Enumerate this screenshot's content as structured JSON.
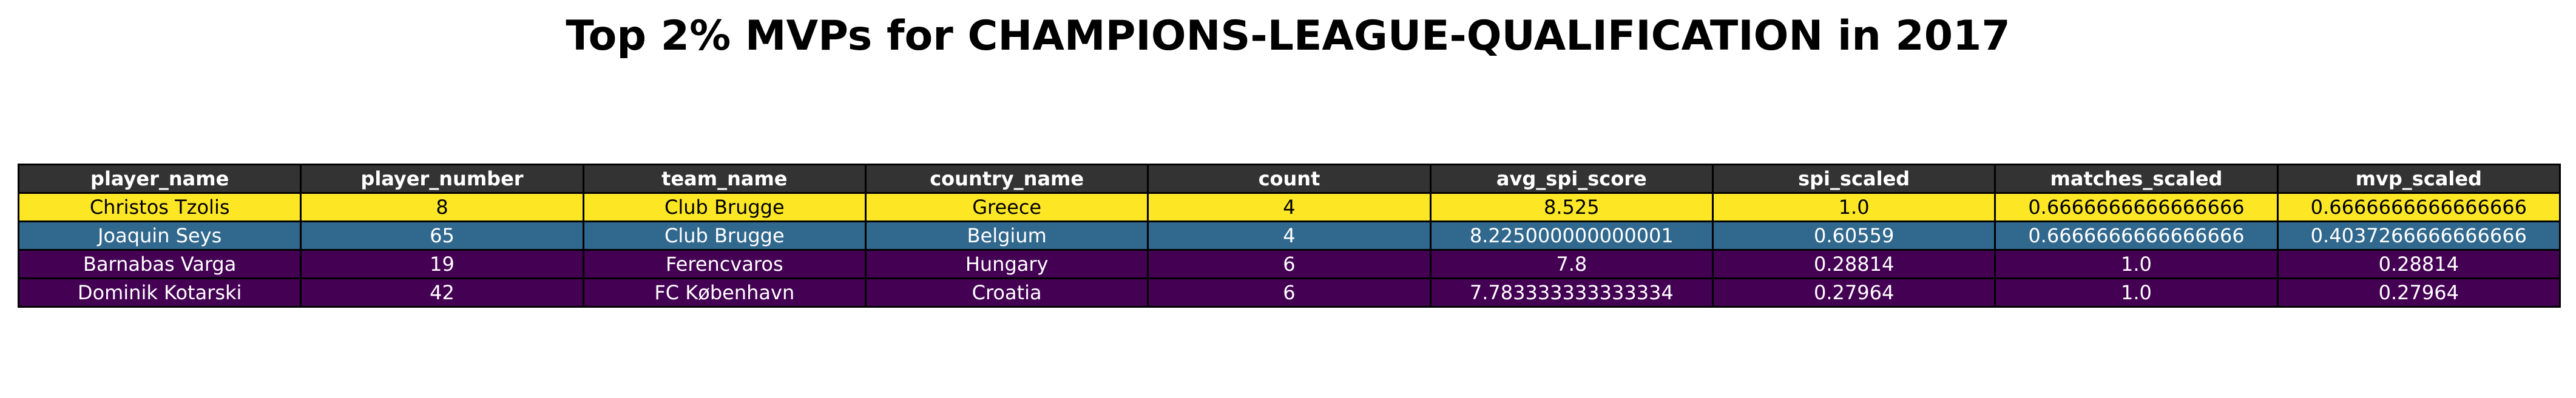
{
  "title": "Top 2% MVPs for CHAMPIONS-LEAGUE-QUALIFICATION in 2017",
  "chart_data": {
    "type": "table",
    "title": "Top 2% MVPs for CHAMPIONS-LEAGUE-QUALIFICATION in 2017",
    "columns": [
      "player_name",
      "player_number",
      "team_name",
      "country_name",
      "count",
      "avg_spi_score",
      "spi_scaled",
      "matches_scaled",
      "mvp_scaled"
    ],
    "rows": [
      {
        "cells": [
          "Christos Tzolis",
          "8",
          "Club Brugge",
          "Greece",
          "4",
          "8.525",
          "1.0",
          "0.6666666666666666",
          "0.6666666666666666"
        ],
        "bg": "#fde725",
        "fg": "#000000"
      },
      {
        "cells": [
          "Joaquin Seys",
          "65",
          "Club Brugge",
          "Belgium",
          "4",
          "8.225000000000001",
          "0.60559",
          "0.6666666666666666",
          "0.4037266666666666"
        ],
        "bg": "#31688e",
        "fg": "#ffffff"
      },
      {
        "cells": [
          "Barnabas Varga",
          "19",
          "Ferencvaros",
          "Hungary",
          "6",
          "7.8",
          "0.28814",
          "1.0",
          "0.28814"
        ],
        "bg": "#440154",
        "fg": "#ffffff"
      },
      {
        "cells": [
          "Dominik Kotarski",
          "42",
          "FC København",
          "Croatia",
          "6",
          "7.783333333333334",
          "0.27964",
          "1.0",
          "0.27964"
        ],
        "bg": "#440154",
        "fg": "#ffffff"
      }
    ],
    "header_bg": "#333333",
    "header_fg": "#ffffff"
  }
}
